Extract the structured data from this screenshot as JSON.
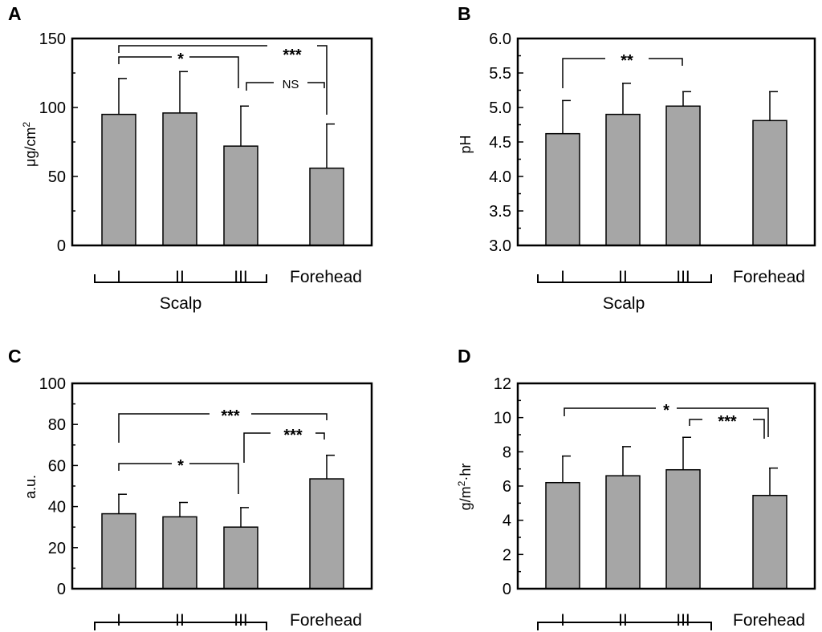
{
  "colors": {
    "bar_fill": "#a6a6a6",
    "stroke": "#000000",
    "background": "#ffffff"
  },
  "chart_data": [
    {
      "panel": "A",
      "type": "bar",
      "categories": [
        "I",
        "II",
        "III",
        "Forehead"
      ],
      "group_label": "Scalp",
      "ylabel": "μg/cm",
      "ylabel_sup": "2",
      "ylim": [
        0,
        150
      ],
      "yticks": [
        "0",
        "50",
        "100",
        "150"
      ],
      "values": [
        95,
        96,
        72,
        56
      ],
      "errors": [
        26,
        30,
        29,
        32
      ],
      "significance": [
        {
          "from": 0,
          "to": 2,
          "label": "*"
        },
        {
          "from": 0,
          "to": 3,
          "label": "***"
        },
        {
          "from": 2,
          "to": 3,
          "label": "NS"
        }
      ]
    },
    {
      "panel": "B",
      "type": "bar",
      "categories": [
        "I",
        "II",
        "III",
        "Forehead"
      ],
      "group_label": "Scalp",
      "ylabel": "pH",
      "ylim": [
        3.0,
        6.0
      ],
      "yticks": [
        "3.0",
        "3.5",
        "4.0",
        "4.5",
        "5.0",
        "5.5",
        "6.0"
      ],
      "values": [
        4.62,
        4.9,
        5.02,
        4.81
      ],
      "errors": [
        0.48,
        0.45,
        0.21,
        0.42
      ],
      "significance": [
        {
          "from": 0,
          "to": 2,
          "label": "**"
        }
      ]
    },
    {
      "panel": "C",
      "type": "bar",
      "categories": [
        "I",
        "II",
        "III",
        "Forehead"
      ],
      "group_label": "",
      "ylabel": "a.u.",
      "ylim": [
        0,
        100
      ],
      "yticks": [
        "0",
        "20",
        "40",
        "60",
        "80",
        "100"
      ],
      "values": [
        36.5,
        35,
        30,
        53.5
      ],
      "errors": [
        9.5,
        7,
        9.5,
        11.5
      ],
      "significance": [
        {
          "from": 0,
          "to": 2,
          "label": "*"
        },
        {
          "from": 0,
          "to": 3,
          "label": "***"
        },
        {
          "from": 2,
          "to": 3,
          "label": "***"
        }
      ]
    },
    {
      "panel": "D",
      "type": "bar",
      "categories": [
        "I",
        "II",
        "III",
        "Forehead"
      ],
      "group_label": "",
      "ylabel": "g/m",
      "ylabel_sup": "2",
      "ylabel_suffix": "·hr",
      "ylim": [
        0,
        12
      ],
      "yticks": [
        "0",
        "2",
        "4",
        "6",
        "8",
        "10",
        "12"
      ],
      "values": [
        6.2,
        6.6,
        6.95,
        5.45
      ],
      "errors": [
        1.55,
        1.7,
        1.9,
        1.6
      ],
      "significance": [
        {
          "from": 0,
          "to": 3,
          "label": "*"
        },
        {
          "from": 2,
          "to": 3,
          "label": "***"
        }
      ]
    }
  ]
}
